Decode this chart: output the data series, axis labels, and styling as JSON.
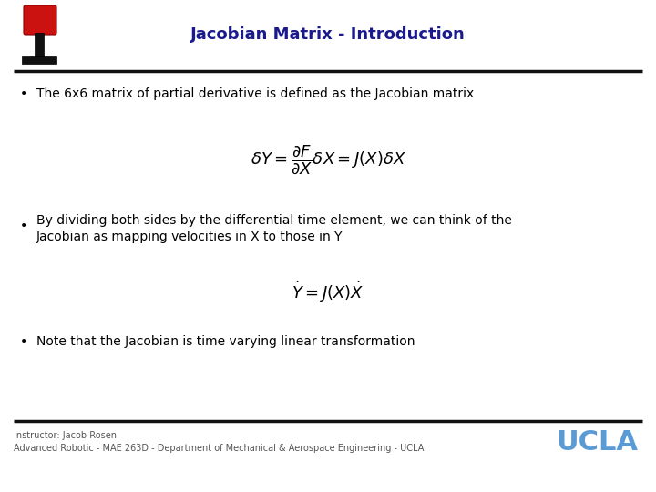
{
  "title": "Jacobian Matrix - Introduction",
  "title_color": "#1a1a8c",
  "title_fontsize": 13,
  "bg_color": "#ffffff",
  "bullet1": "The 6x6 matrix of partial derivative is defined as the Jacobian matrix",
  "bullet2_line1": "By dividing both sides by the differential time element, we can think of the",
  "bullet2_line2": "Jacobian as mapping velocities in X to those in Y",
  "bullet3": "Note that the Jacobian is time varying linear transformation",
  "eq1": "$\\delta Y = \\dfrac{\\partial F}{\\partial X} \\delta X = J(X) \\delta X$",
  "eq2": "$\\dot{Y} = J(X)\\dot{X}$",
  "footer_left1": "Instructor: Jacob Rosen",
  "footer_left2": "Advanced Robotic - MAE 263D - Department of Mechanical & Aerospace Engineering - UCLA",
  "footer_right": "UCLA",
  "footer_color": "#555555",
  "ucla_color": "#5b9bd5",
  "separator_color": "#111111",
  "bullet_color": "#000000",
  "text_fontsize": 10,
  "footer_fontsize": 7
}
